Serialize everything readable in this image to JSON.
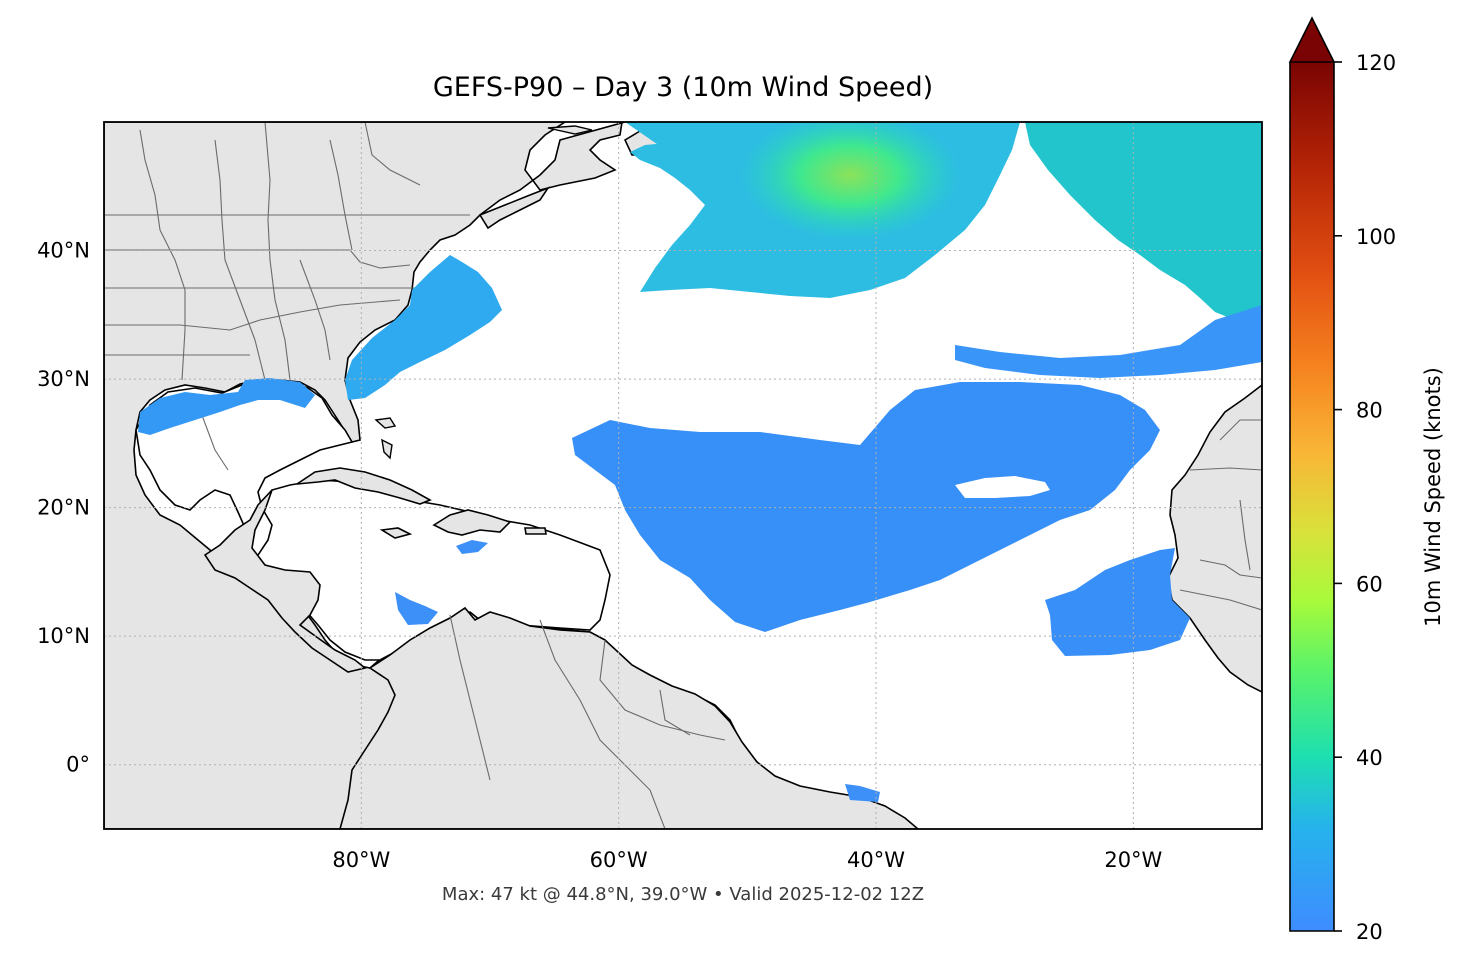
{
  "title": "GEFS-P90 – Day 3 (10m Wind Speed)",
  "footer": "Max: 47 kt @ 44.8°N, 39.0°W • Valid 2025-12-02 12Z",
  "map": {
    "extent": {
      "lon_min": -100,
      "lon_max": -10,
      "lat_min": -5,
      "lat_max": 50
    },
    "lon_ticks": [
      {
        "value": -80,
        "label": "80°W"
      },
      {
        "value": -60,
        "label": "60°W"
      },
      {
        "value": -40,
        "label": "40°W"
      },
      {
        "value": -20,
        "label": "20°W"
      }
    ],
    "lat_ticks": [
      {
        "value": 40,
        "label": "40°N"
      },
      {
        "value": 30,
        "label": "30°N"
      },
      {
        "value": 20,
        "label": "20°N"
      },
      {
        "value": 10,
        "label": "10°N"
      },
      {
        "value": 0,
        "label": "0°"
      }
    ],
    "land_color": "#e5e5e5",
    "ocean_color": "#ffffff",
    "gridlines": "dotted"
  },
  "colorbar": {
    "label": "10m Wind Speed (knots)",
    "min": 20,
    "max": 120,
    "extend": "max",
    "ticks": [
      {
        "value": 20,
        "label": "20"
      },
      {
        "value": 40,
        "label": "40"
      },
      {
        "value": 60,
        "label": "60"
      },
      {
        "value": 80,
        "label": "80"
      },
      {
        "value": 100,
        "label": "100"
      },
      {
        "value": 120,
        "label": "120"
      }
    ],
    "colormap": "turbo"
  }
}
